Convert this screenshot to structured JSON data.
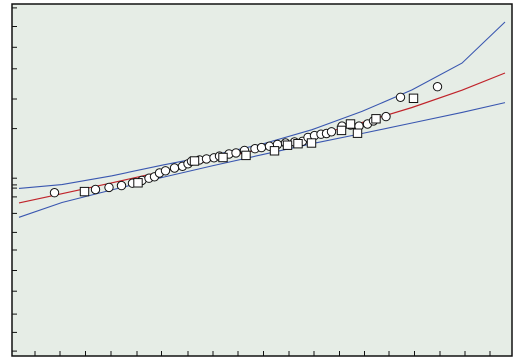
{
  "colors": {
    "panel_background": "#e6ede6",
    "frame": "#111111",
    "fit_line": "#c0242b",
    "confidence_band": "#3a57b0",
    "marker_fill": "#ffffff",
    "marker_stroke": "#111111"
  },
  "chart_data": {
    "type": "scatter",
    "title": "",
    "xlabel": "",
    "ylabel": "",
    "xlim": [
      0,
      100
    ],
    "ylim": [
      0,
      100
    ],
    "grid": false,
    "legend": "none",
    "tick_labels_visible": false,
    "x_ticks": [
      4.6,
      9.6,
      14.7,
      19.8,
      25.0,
      29.9,
      35.2,
      40.2,
      45.2,
      50.3,
      55.4,
      60.4,
      65.5,
      70.5,
      75.4,
      80.5,
      85.6,
      90.6,
      95.6
    ],
    "y_ticks": [
      98.9,
      93.6,
      87.7,
      81.6,
      73.0,
      64.6,
      50.5,
      48.6,
      47.7,
      45.2,
      40.5,
      35.1,
      30.1,
      24.3,
      18.4,
      11.9,
      6.7,
      1.4
    ],
    "series": [
      {
        "marker": "circle",
        "x": [
          8.5,
          16.7,
          19.4,
          21.9,
          24.1,
          26.0,
          27.4,
          28.5,
          29.5,
          30.7,
          32.5,
          34.1,
          35.2,
          35.9,
          37.5,
          38.9,
          40.4,
          41.5,
          43.4,
          44.8,
          46.5,
          48.6,
          49.9,
          51.5,
          53.1,
          54.7,
          56.5,
          58.1,
          59.2,
          60.5,
          61.8,
          62.9,
          63.9,
          66.0,
          67.7,
          69.4,
          71.1,
          72.3,
          74.8,
          77.7,
          85.1
        ],
        "y": [
          46.4,
          47.3,
          47.9,
          48.4,
          49.1,
          49.9,
          50.5,
          50.9,
          52.0,
          52.6,
          53.4,
          53.9,
          54.6,
          55.3,
          55.7,
          56.0,
          56.3,
          56.8,
          57.4,
          57.7,
          58.4,
          58.9,
          59.2,
          59.6,
          60.1,
          60.5,
          60.8,
          61.0,
          62.1,
          62.6,
          63.0,
          63.2,
          63.7,
          65.3,
          65.6,
          65.3,
          65.9,
          66.8,
          68.0,
          73.5,
          76.5
        ]
      },
      {
        "marker": "square",
        "x": [
          14.5,
          25.2,
          36.5,
          42.2,
          46.8,
          52.5,
          55.1,
          57.2,
          59.9,
          65.9,
          67.7,
          69.1,
          72.8,
          80.3
        ],
        "y": [
          46.7,
          49.2,
          55.4,
          56.4,
          57.0,
          58.3,
          59.9,
          60.3,
          60.5,
          64.1,
          65.9,
          63.3,
          67.4,
          73.2
        ]
      }
    ],
    "fit_line": {
      "x": [
        1.4,
        10.0,
        20.0,
        30.0,
        40.0,
        50.0,
        60.0,
        70.0,
        80.0,
        90.0,
        98.6
      ],
      "y": [
        43.5,
        46.1,
        49.2,
        52.4,
        55.6,
        58.9,
        62.4,
        66.3,
        70.6,
        75.5,
        80.4
      ]
    },
    "confidence_upper": {
      "x": [
        1.4,
        10.0,
        20.0,
        30.0,
        40.0,
        50.0,
        60.0,
        70.0,
        80.0,
        90.0,
        98.6
      ],
      "y": [
        47.6,
        48.7,
        51.2,
        54.2,
        57.0,
        60.2,
        64.3,
        69.5,
        75.6,
        83.2,
        94.9
      ]
    },
    "confidence_lower": {
      "x": [
        1.4,
        10.0,
        20.0,
        30.0,
        40.0,
        50.0,
        60.0,
        70.0,
        80.0,
        90.0,
        98.6
      ],
      "y": [
        39.4,
        43.6,
        47.2,
        50.7,
        54.0,
        57.2,
        60.3,
        63.2,
        66.2,
        69.2,
        72.0
      ]
    }
  }
}
